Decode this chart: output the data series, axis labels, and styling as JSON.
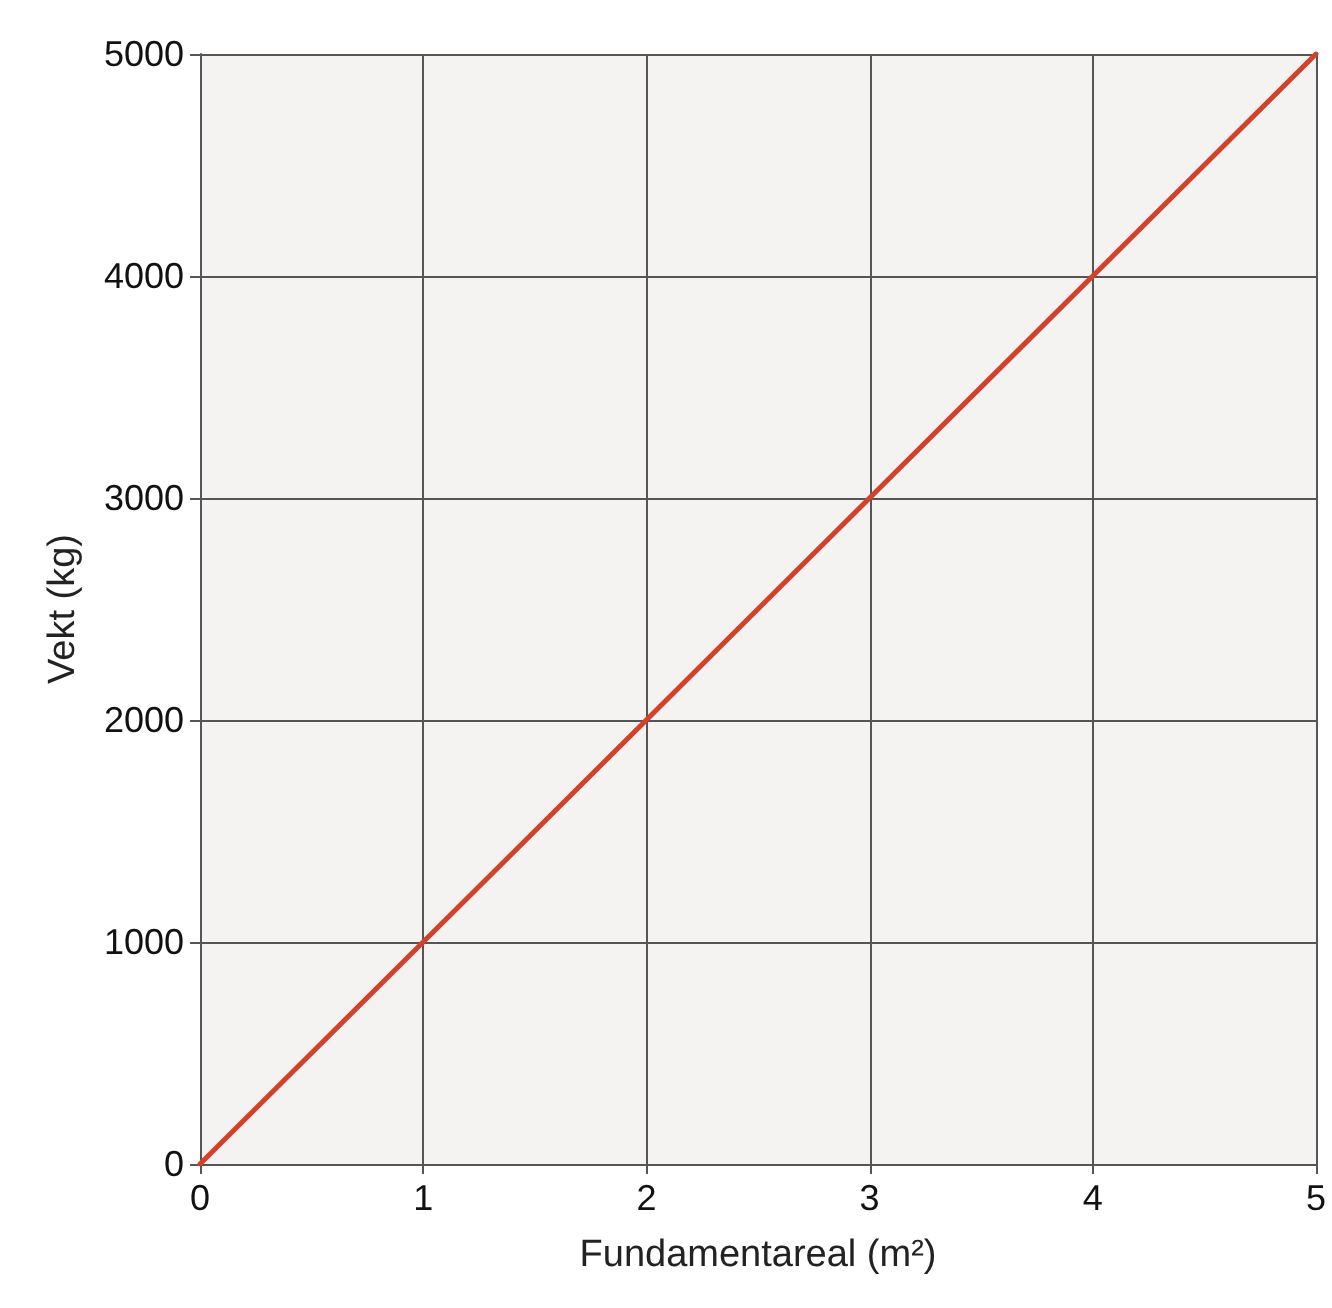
{
  "chart_data": {
    "type": "line",
    "xlabel": "Fundamentareal (m²)",
    "ylabel": "Vekt (kg)",
    "x": [
      0,
      1,
      2,
      3,
      4,
      5
    ],
    "series": [
      {
        "color": "#d2412a",
        "values": [
          0,
          1000,
          2000,
          3000,
          4000,
          5000
        ]
      }
    ],
    "xlim": [
      0,
      5
    ],
    "xticks": [
      0,
      1,
      2,
      3,
      4,
      5
    ],
    "ylim": [
      0,
      5000
    ],
    "yticks": [
      0,
      1000,
      2000,
      3000,
      4000,
      5000
    ],
    "grid": true,
    "marker": "none",
    "line_style": "solid"
  }
}
